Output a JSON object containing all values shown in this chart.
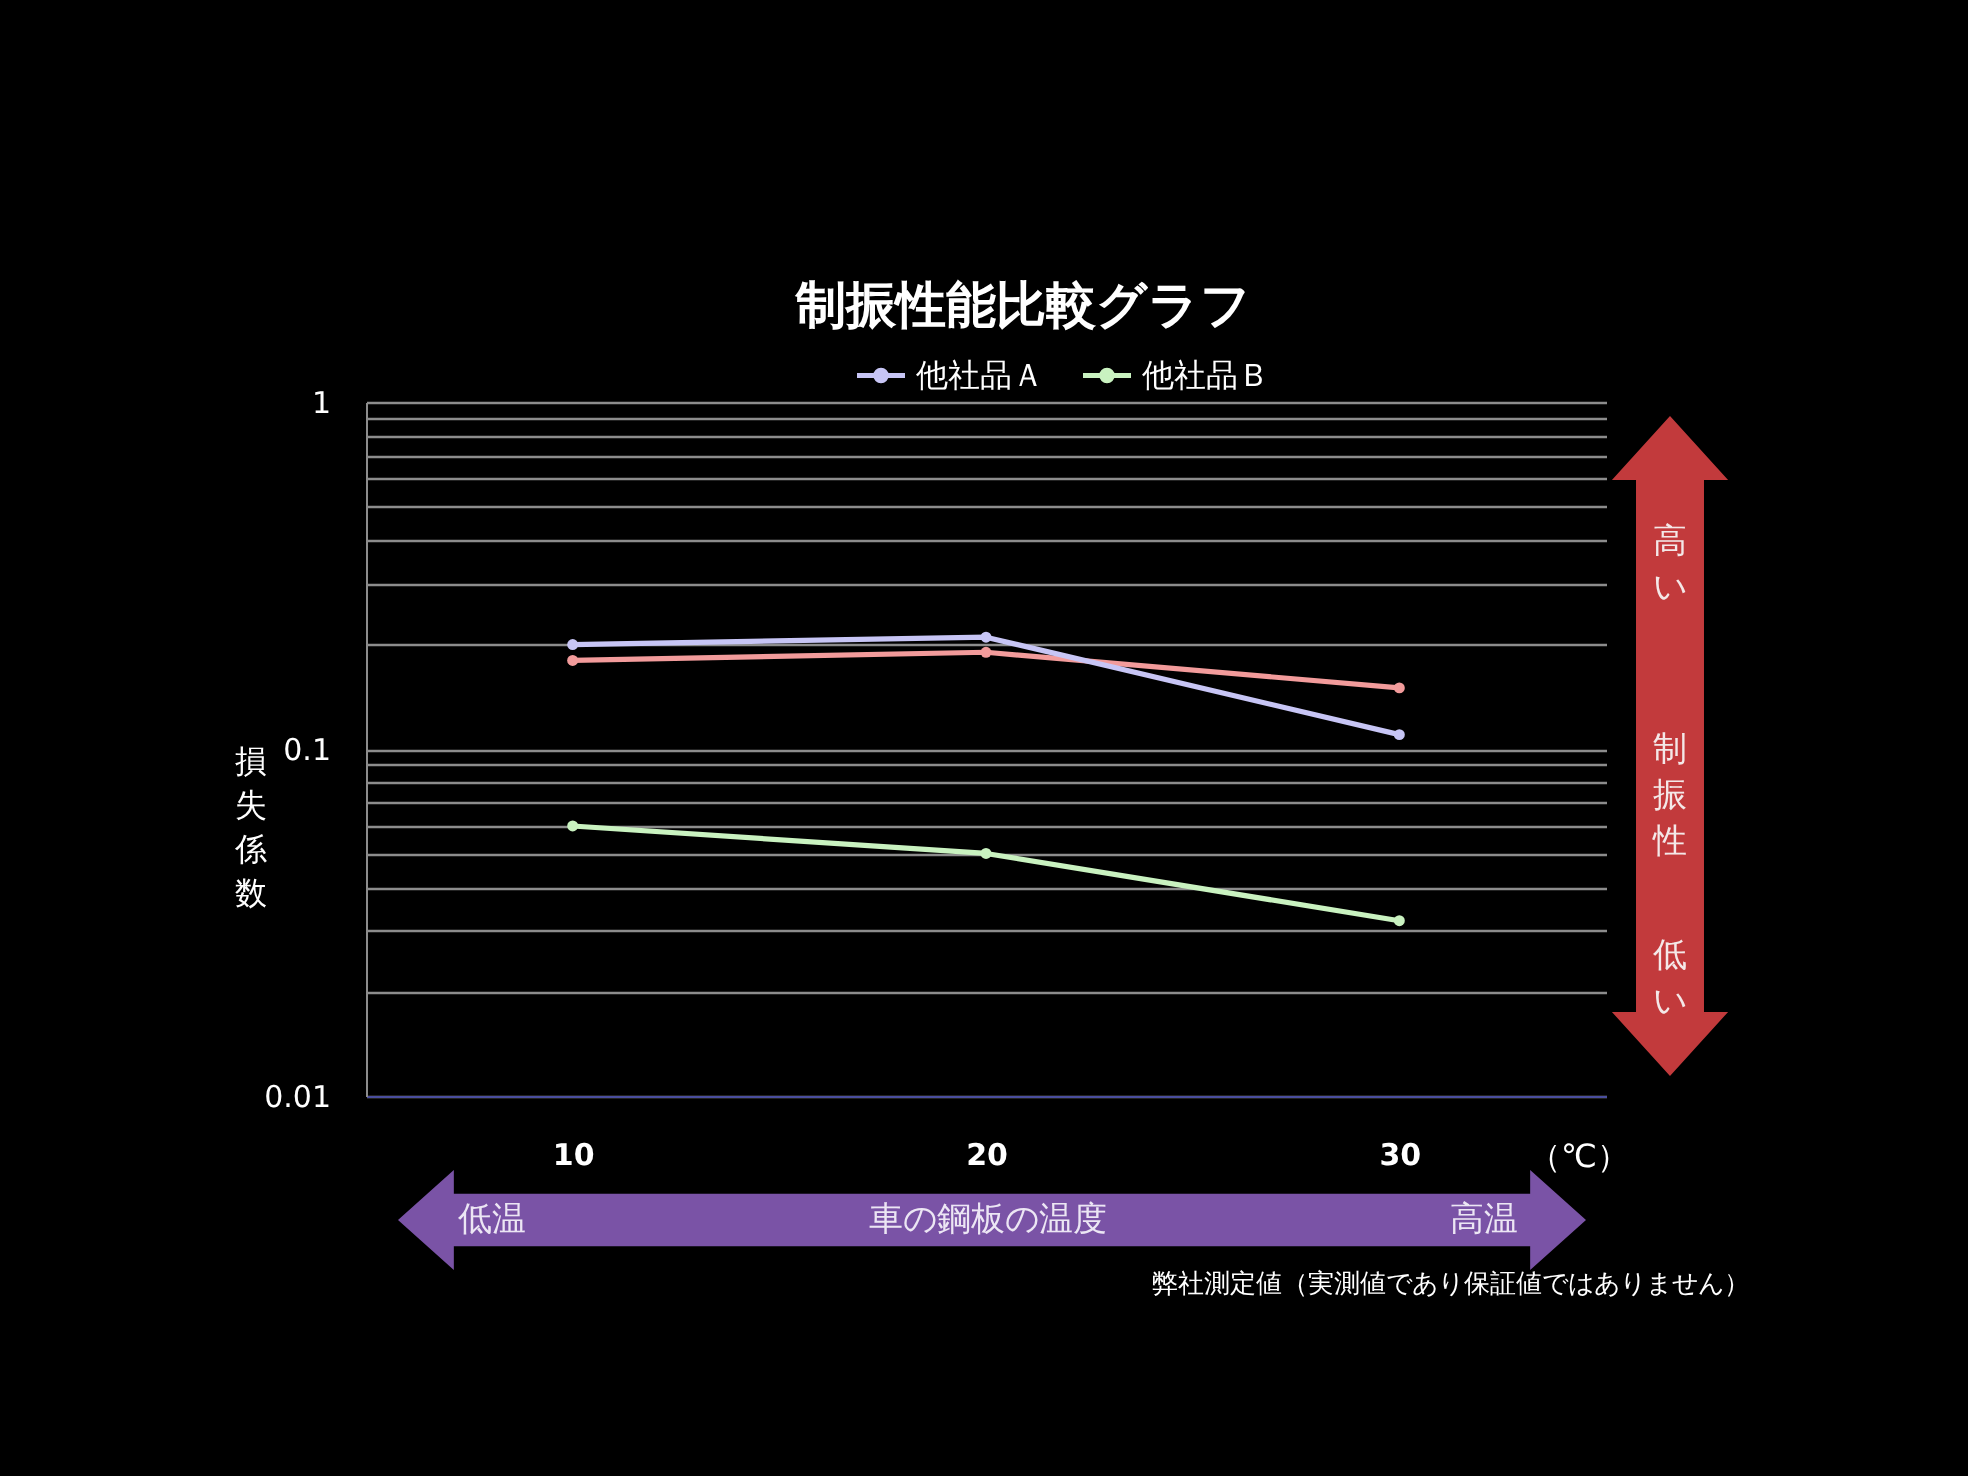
{
  "chart_data": {
    "type": "line",
    "title": "制振性能比較グラフ",
    "xlabel": "（℃）",
    "ylabel": "損失係数",
    "categories": [
      "10",
      "20",
      "30"
    ],
    "series": [
      {
        "color": "#f29b9b",
        "values": [
          0.18,
          0.19,
          0.15
        ]
      },
      {
        "name": "他社品Ａ",
        "color": "#c7c5f5",
        "values": [
          0.2,
          0.21,
          0.11
        ]
      },
      {
        "name": "他社品Ｂ",
        "color": "#c9f2c0",
        "values": [
          0.06,
          0.05,
          0.032
        ]
      }
    ],
    "log": true,
    "ylim": [
      0.01,
      1
    ],
    "yticks": [
      0.01,
      {
        "value": 0.02,
        "label": null
      },
      {
        "value": 0.03,
        "label": null
      },
      {
        "value": 0.04,
        "label": null
      },
      {
        "value": 0.05,
        "label": null
      },
      {
        "value": 0.06,
        "label": null
      },
      {
        "value": 0.07,
        "label": null
      },
      {
        "value": 0.08,
        "label": null
      },
      {
        "value": 0.09,
        "label": null
      },
      0.1,
      {
        "value": 0.2,
        "label": null
      },
      {
        "value": 0.3,
        "label": null
      },
      {
        "value": 0.4,
        "label": null
      },
      {
        "value": 0.5,
        "label": null
      },
      {
        "value": 0.6,
        "label": null
      },
      {
        "value": 0.7,
        "label": null
      },
      {
        "value": 0.8,
        "label": null
      },
      {
        "value": 0.9,
        "label": null
      },
      1
    ],
    "grid": "y",
    "legend": "top",
    "marker": "circle",
    "line_style": "solid",
    "annotations": [
      "低温",
      "車の鋼板の温度",
      "高温",
      "高い",
      "制振性",
      "低い",
      "弊社測定値（実測値であり保証値ではありません）"
    ]
  }
}
